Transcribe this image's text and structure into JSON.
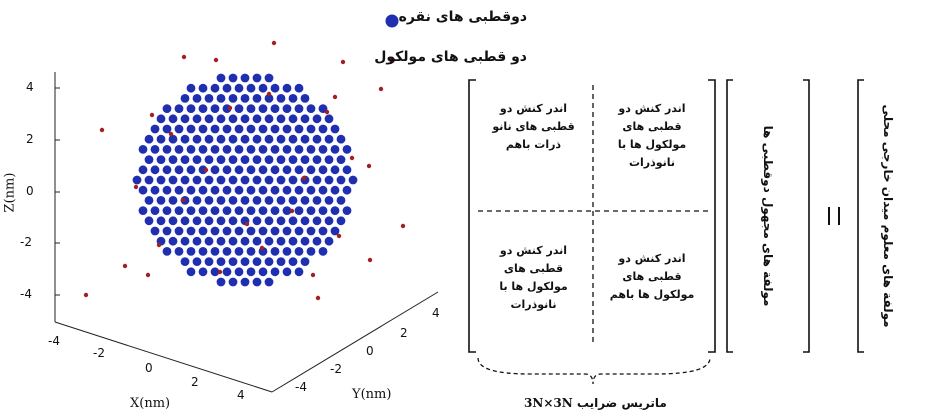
{
  "legend": {
    "silver_dipoles": "دوقطبی های نقره",
    "molecule_dipoles": "دو قطبی های مولکول",
    "silver_color": "#1f2fb0",
    "molecule_color": "#a32020"
  },
  "plot": {
    "x_label": "X(nm)",
    "y_label": "Y(nm)",
    "z_label": "Z(nm)",
    "z_ticks": [
      "4",
      "2",
      "0",
      "-2",
      "-4"
    ],
    "x_ticks": [
      "-4",
      "-2",
      "0",
      "2",
      "4"
    ],
    "y_ticks": [
      "-4",
      "-2",
      "0",
      "2",
      "4"
    ]
  },
  "matrix": {
    "top_left": "اندر کنش دو\nقطبی های نانو\nذرات باهم",
    "top_right": "اندر کنش دو\nقطبی های\nمولکول ها با\nنانوذرات",
    "bottom_left": "اندر کنش دو\nقطبی های\nمولکول ها با\nنانوذرات",
    "bottom_right": "اندر کنش دو\nقطبی های\nمولکول ها باهم",
    "size_label": "3N×3N",
    "caption": "ماتریس ضرایب"
  },
  "unknown_vector": "مولفة های مجهول دوقطبی ها",
  "equals": "=",
  "known_vector": "مولفة های معلوم میدان خارجی محلی"
}
